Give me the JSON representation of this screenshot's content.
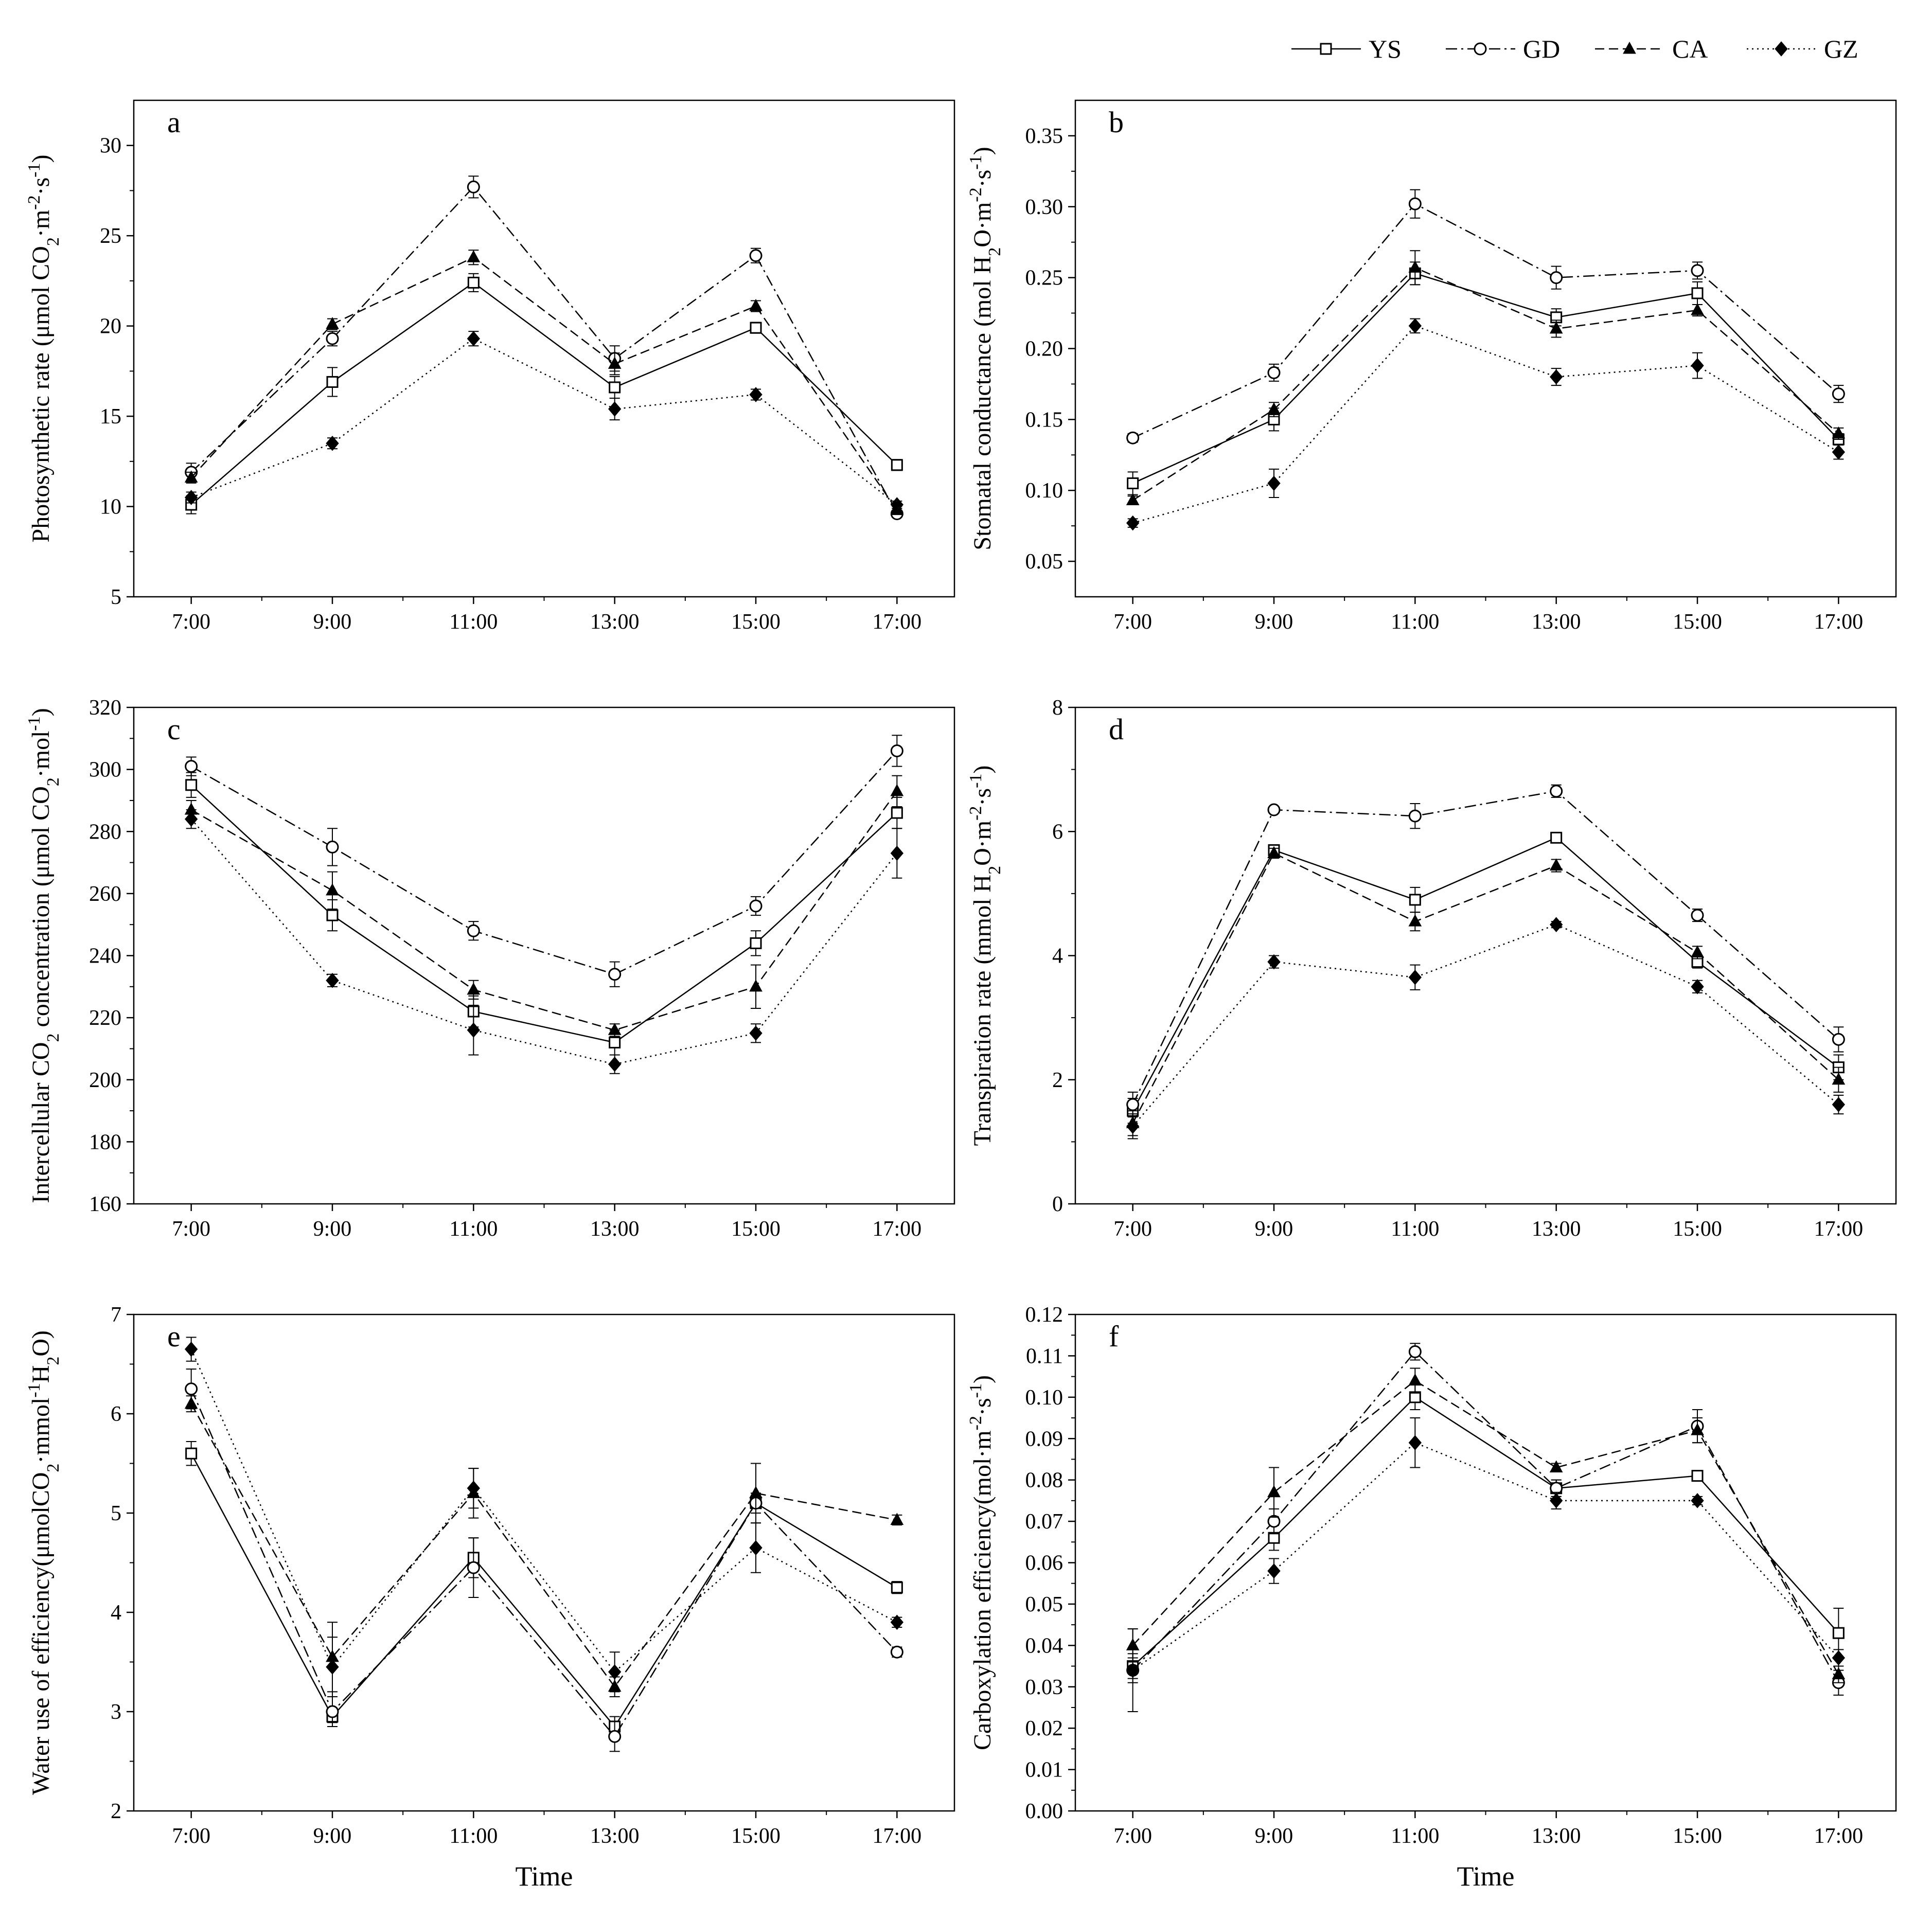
{
  "legend": {
    "series": [
      {
        "name": "YS",
        "marker": "square-open",
        "dash": "solid"
      },
      {
        "name": "GD",
        "marker": "circle-open",
        "dash": "dashdot"
      },
      {
        "name": "CA",
        "marker": "triangle-filled",
        "dash": "dashed"
      },
      {
        "name": "GZ",
        "marker": "diamond-filled",
        "dash": "dotted"
      }
    ]
  },
  "chart_data": [
    {
      "panel": "a",
      "type": "line",
      "xlabel": "",
      "ylabel": "Photosynthetic rate (μmol CO2·m-2·s-1)",
      "ylabel_parts": [
        "Photosynthetic rate (μmol CO",
        "2",
        "·m",
        "-2",
        "·s",
        "-1",
        ")"
      ],
      "categories": [
        "7:00",
        "9:00",
        "11:00",
        "13:00",
        "15:00",
        "17:00"
      ],
      "ylim": [
        5,
        32.5
      ],
      "yticks": [
        5,
        10,
        15,
        20,
        25,
        30
      ],
      "ytick_labels": [
        "5",
        "10",
        "15",
        "20",
        "25",
        "30"
      ],
      "series": [
        {
          "name": "YS",
          "values": [
            10.1,
            16.9,
            22.4,
            16.6,
            19.9,
            12.3
          ],
          "errors": [
            0.5,
            0.8,
            0.5,
            0.6,
            0.3,
            0.3
          ]
        },
        {
          "name": "GD",
          "values": [
            11.9,
            19.3,
            27.7,
            18.2,
            23.9,
            9.6
          ],
          "errors": [
            0.5,
            0.4,
            0.6,
            0.7,
            0.4,
            0.2
          ]
        },
        {
          "name": "CA",
          "values": [
            11.6,
            20.1,
            23.8,
            17.9,
            21.1,
            9.8
          ],
          "errors": [
            0.3,
            0.3,
            0.4,
            0.6,
            0.3,
            0.2
          ]
        },
        {
          "name": "GZ",
          "values": [
            10.5,
            13.5,
            19.3,
            15.4,
            16.2,
            10.1
          ],
          "errors": [
            0.3,
            0.3,
            0.4,
            0.6,
            0.3,
            0.2
          ]
        }
      ]
    },
    {
      "panel": "b",
      "type": "line",
      "xlabel": "",
      "ylabel": "Stomatal conductance (mol H2O·m-2·s-1)",
      "ylabel_parts": [
        "Stomatal conductance (mol H",
        "2",
        "O·m",
        "-2",
        "·s",
        "-1",
        ")"
      ],
      "categories": [
        "7:00",
        "9:00",
        "11:00",
        "13:00",
        "15:00",
        "17:00"
      ],
      "ylim": [
        0.025,
        0.375
      ],
      "yticks": [
        0.05,
        0.1,
        0.15,
        0.2,
        0.25,
        0.3,
        0.35
      ],
      "ytick_labels": [
        "0.05",
        "0.10",
        "0.15",
        "0.20",
        "0.25",
        "0.30",
        "0.35"
      ],
      "series": [
        {
          "name": "YS",
          "values": [
            0.105,
            0.15,
            0.253,
            0.222,
            0.239,
            0.136
          ],
          "errors": [
            0.008,
            0.008,
            0.008,
            0.006,
            0.008,
            0.004
          ]
        },
        {
          "name": "GD",
          "values": [
            0.137,
            0.183,
            0.302,
            0.25,
            0.255,
            0.168
          ],
          "errors": [
            0.003,
            0.006,
            0.01,
            0.008,
            0.006,
            0.006
          ]
        },
        {
          "name": "CA",
          "values": [
            0.093,
            0.157,
            0.257,
            0.214,
            0.227,
            0.14
          ],
          "errors": [
            0.003,
            0.005,
            0.012,
            0.006,
            0.004,
            0.004
          ]
        },
        {
          "name": "GZ",
          "values": [
            0.077,
            0.105,
            0.216,
            0.18,
            0.188,
            0.127
          ],
          "errors": [
            0.003,
            0.01,
            0.005,
            0.006,
            0.009,
            0.005
          ]
        }
      ]
    },
    {
      "panel": "c",
      "type": "line",
      "xlabel": "",
      "ylabel": "Intercellular CO2 concentration (μmol CO2·mol-1)",
      "ylabel_parts": [
        "Intercellular CO",
        "2",
        " concentration (μmol CO",
        "2",
        "·mol",
        "-1",
        ")"
      ],
      "categories": [
        "7:00",
        "9:00",
        "11:00",
        "13:00",
        "15:00",
        "17:00"
      ],
      "ylim": [
        160,
        320
      ],
      "yticks": [
        160,
        180,
        200,
        220,
        240,
        260,
        280,
        300,
        320
      ],
      "ytick_labels": [
        "160",
        "180",
        "200",
        "220",
        "240",
        "260",
        "280",
        "300",
        "320"
      ],
      "series": [
        {
          "name": "YS",
          "values": [
            295,
            253,
            222,
            212,
            244,
            286
          ],
          "errors": [
            4,
            5,
            5,
            4,
            4,
            5
          ]
        },
        {
          "name": "GD",
          "values": [
            301,
            275,
            248,
            234,
            256,
            306
          ],
          "errors": [
            3,
            6,
            3,
            4,
            3,
            5
          ]
        },
        {
          "name": "CA",
          "values": [
            287,
            261,
            229,
            216,
            230,
            293
          ],
          "errors": [
            3,
            6,
            3,
            2,
            7,
            5
          ]
        },
        {
          "name": "GZ",
          "values": [
            284,
            232,
            216,
            205,
            215,
            273
          ],
          "errors": [
            3,
            2,
            8,
            3,
            3,
            8
          ]
        }
      ]
    },
    {
      "panel": "d",
      "type": "line",
      "xlabel": "",
      "ylabel": "Transpiration rate (mmol H2O·m-2·s-1)",
      "ylabel_parts": [
        "Transpiration rate (mmol H",
        "2",
        "O·m",
        "-2",
        "·s",
        "-1",
        ")"
      ],
      "categories": [
        "7:00",
        "9:00",
        "11:00",
        "13:00",
        "15:00",
        "17:00"
      ],
      "ylim": [
        0,
        8
      ],
      "yticks": [
        0,
        2,
        4,
        6,
        8
      ],
      "ytick_labels": [
        "0",
        "2",
        "4",
        "6",
        "8"
      ],
      "series": [
        {
          "name": "YS",
          "values": [
            1.5,
            5.7,
            4.9,
            5.9,
            3.9,
            2.2
          ],
          "errors": [
            0.2,
            0.08,
            0.2,
            0.05,
            0.1,
            0.2
          ]
        },
        {
          "name": "GD",
          "values": [
            1.6,
            6.35,
            6.25,
            6.65,
            4.65,
            2.65
          ],
          "errors": [
            0.2,
            0.05,
            0.2,
            0.1,
            0.1,
            0.2
          ]
        },
        {
          "name": "CA",
          "values": [
            1.3,
            5.65,
            4.55,
            5.45,
            4.05,
            2.0
          ],
          "errors": [
            0.2,
            0.08,
            0.15,
            0.1,
            0.1,
            0.2
          ]
        },
        {
          "name": "GZ",
          "values": [
            1.25,
            3.9,
            3.65,
            4.5,
            3.5,
            1.6
          ],
          "errors": [
            0.2,
            0.1,
            0.2,
            0.05,
            0.1,
            0.15
          ]
        }
      ]
    },
    {
      "panel": "e",
      "type": "line",
      "xlabel": "Time",
      "ylabel": "Water use of efficiency(μmolCO2·mmol-1H2O)",
      "ylabel_parts": [
        "Water use of efficiency(μmolCO",
        "2",
        "·mmol",
        "-1",
        "H",
        "2",
        "O)"
      ],
      "categories": [
        "7:00",
        "9:00",
        "11:00",
        "13:00",
        "15:00",
        "17:00"
      ],
      "ylim": [
        2,
        7
      ],
      "yticks": [
        2,
        3,
        4,
        5,
        6,
        7
      ],
      "ytick_labels": [
        "2",
        "3",
        "4",
        "5",
        "6",
        "7"
      ],
      "series": [
        {
          "name": "YS",
          "values": [
            5.6,
            2.95,
            4.55,
            2.85,
            5.1,
            4.25
          ],
          "errors": [
            0.12,
            0.06,
            0.2,
            0.1,
            0.1,
            0.06
          ]
        },
        {
          "name": "GD",
          "values": [
            6.25,
            3.0,
            4.45,
            2.75,
            5.1,
            3.6
          ],
          "errors": [
            0.2,
            0.15,
            0.3,
            0.15,
            0.1,
            0.05
          ]
        },
        {
          "name": "CA",
          "values": [
            6.1,
            3.55,
            5.2,
            3.25,
            5.2,
            4.93
          ],
          "errors": [
            0.08,
            0.35,
            0.25,
            0.1,
            0.3,
            0.05
          ]
        },
        {
          "name": "GZ",
          "values": [
            6.65,
            3.45,
            5.25,
            3.4,
            4.65,
            3.9
          ],
          "errors": [
            0.12,
            0.3,
            0.2,
            0.2,
            0.25,
            0.05
          ]
        }
      ]
    },
    {
      "panel": "f",
      "type": "line",
      "xlabel": "Time",
      "ylabel": "Carboxylation efficiency(mol·m-2·s-1)",
      "ylabel_parts": [
        "Carboxylation efficiency(mol·m",
        "-2",
        "·s",
        "-1",
        ")"
      ],
      "categories": [
        "7:00",
        "9:00",
        "11:00",
        "13:00",
        "15:00",
        "17:00"
      ],
      "ylim": [
        0,
        0.12
      ],
      "yticks": [
        0,
        0.01,
        0.02,
        0.03,
        0.04,
        0.05,
        0.06,
        0.07,
        0.08,
        0.09,
        0.1,
        0.11,
        0.12
      ],
      "ytick_labels": [
        "0.00",
        "0.01",
        "0.02",
        "0.03",
        "0.04",
        "0.05",
        "0.06",
        "0.07",
        "0.08",
        "0.09",
        "0.10",
        "0.11",
        "0.12"
      ],
      "series": [
        {
          "name": "YS",
          "values": [
            0.035,
            0.066,
            0.1,
            0.078,
            0.081,
            0.043
          ],
          "errors": [
            0.003,
            0.003,
            0.003,
            0.002,
            0.001,
            0.006
          ]
        },
        {
          "name": "GD",
          "values": [
            0.034,
            0.07,
            0.111,
            0.078,
            0.093,
            0.031
          ],
          "errors": [
            0.003,
            0.003,
            0.002,
            0.002,
            0.004,
            0.003
          ]
        },
        {
          "name": "CA",
          "values": [
            0.04,
            0.077,
            0.104,
            0.083,
            0.092,
            0.033
          ],
          "errors": [
            0.004,
            0.006,
            0.003,
            0.001,
            0.003,
            0.002
          ]
        },
        {
          "name": "GZ",
          "values": [
            0.034,
            0.058,
            0.089,
            0.075,
            0.075,
            0.037
          ],
          "errors": [
            0.01,
            0.003,
            0.006,
            0.002,
            0.001,
            0.002
          ]
        }
      ]
    }
  ]
}
